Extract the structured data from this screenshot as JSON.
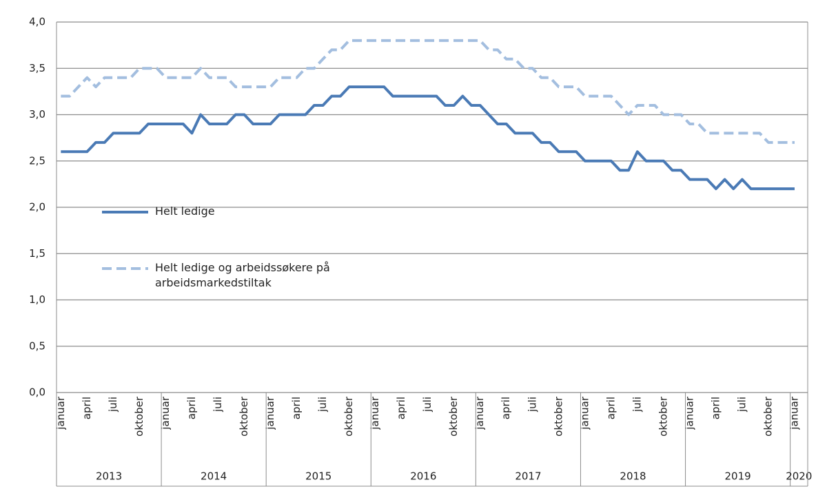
{
  "chart_data": {
    "type": "line",
    "categories": [
      "januar",
      null,
      null,
      "april",
      null,
      null,
      "juli",
      null,
      null,
      "oktober",
      null,
      null,
      "januar",
      null,
      null,
      "april",
      null,
      null,
      "juli",
      null,
      null,
      "oktober",
      null,
      null,
      "januar",
      null,
      null,
      "april",
      null,
      null,
      "juli",
      null,
      null,
      "oktober",
      null,
      null,
      "januar",
      null,
      null,
      "april",
      null,
      null,
      "juli",
      null,
      null,
      "oktober",
      null,
      null,
      "januar",
      null,
      null,
      "april",
      null,
      null,
      "juli",
      null,
      null,
      "oktober",
      null,
      null,
      "januar",
      null,
      null,
      "april",
      null,
      null,
      "juli",
      null,
      null,
      "oktober",
      null,
      null,
      "januar",
      null,
      null,
      "april",
      null,
      null,
      "juli",
      null,
      null,
      "oktober",
      null,
      null,
      "januar"
    ],
    "years": [
      "2013",
      "2014",
      "2015",
      "2016",
      "2017",
      "2018",
      "2019",
      "2020"
    ],
    "series": [
      {
        "name": "Helt ledige",
        "color": "#4a7ab5",
        "dash": false,
        "values": [
          2.6,
          2.6,
          2.6,
          2.6,
          2.7,
          2.7,
          2.8,
          2.8,
          2.8,
          2.8,
          2.9,
          2.9,
          2.9,
          2.9,
          2.9,
          2.8,
          3.0,
          2.9,
          2.9,
          2.9,
          3.0,
          3.0,
          2.9,
          2.9,
          2.9,
          3.0,
          3.0,
          3.0,
          3.0,
          3.1,
          3.1,
          3.2,
          3.2,
          3.3,
          3.3,
          3.3,
          3.3,
          3.3,
          3.2,
          3.2,
          3.2,
          3.2,
          3.2,
          3.2,
          3.1,
          3.1,
          3.2,
          3.1,
          3.1,
          3.0,
          2.9,
          2.9,
          2.8,
          2.8,
          2.8,
          2.7,
          2.7,
          2.6,
          2.6,
          2.6,
          2.5,
          2.5,
          2.5,
          2.5,
          2.4,
          2.4,
          2.6,
          2.5,
          2.5,
          2.5,
          2.4,
          2.4,
          2.3,
          2.3,
          2.3,
          2.2,
          2.3,
          2.2,
          2.3,
          2.2,
          2.2,
          2.2,
          2.2,
          2.2,
          2.2
        ]
      },
      {
        "name": "Helt ledige og arbeidssøkere på arbeidsmarkedstiltak",
        "color": "#a3bedf",
        "dash": true,
        "values": [
          3.2,
          3.2,
          3.3,
          3.4,
          3.3,
          3.4,
          3.4,
          3.4,
          3.4,
          3.5,
          3.5,
          3.5,
          3.4,
          3.4,
          3.4,
          3.4,
          3.5,
          3.4,
          3.4,
          3.4,
          3.3,
          3.3,
          3.3,
          3.3,
          3.3,
          3.4,
          3.4,
          3.4,
          3.5,
          3.5,
          3.6,
          3.7,
          3.7,
          3.8,
          3.8,
          3.8,
          3.8,
          3.8,
          3.8,
          3.8,
          3.8,
          3.8,
          3.8,
          3.8,
          3.8,
          3.8,
          3.8,
          3.8,
          3.8,
          3.7,
          3.7,
          3.6,
          3.6,
          3.5,
          3.5,
          3.4,
          3.4,
          3.3,
          3.3,
          3.3,
          3.2,
          3.2,
          3.2,
          3.2,
          3.1,
          3.0,
          3.1,
          3.1,
          3.1,
          3.0,
          3.0,
          3.0,
          2.9,
          2.9,
          2.8,
          2.8,
          2.8,
          2.8,
          2.8,
          2.8,
          2.8,
          2.7,
          2.7,
          2.7,
          2.7
        ]
      }
    ],
    "ylim": [
      0,
      4
    ],
    "yticks": [
      {
        "value": 0,
        "label": "0,0"
      },
      {
        "value": 0.5,
        "label": "0,5"
      },
      {
        "value": 1,
        "label": "1,0"
      },
      {
        "value": 1.5,
        "label": "1,5"
      },
      {
        "value": 2,
        "label": "2,0"
      },
      {
        "value": 2.5,
        "label": "2,5"
      },
      {
        "value": 3,
        "label": "3,0"
      },
      {
        "value": 3.5,
        "label": "3,5"
      },
      {
        "value": 4,
        "label": "4,0"
      }
    ],
    "grid": true
  }
}
